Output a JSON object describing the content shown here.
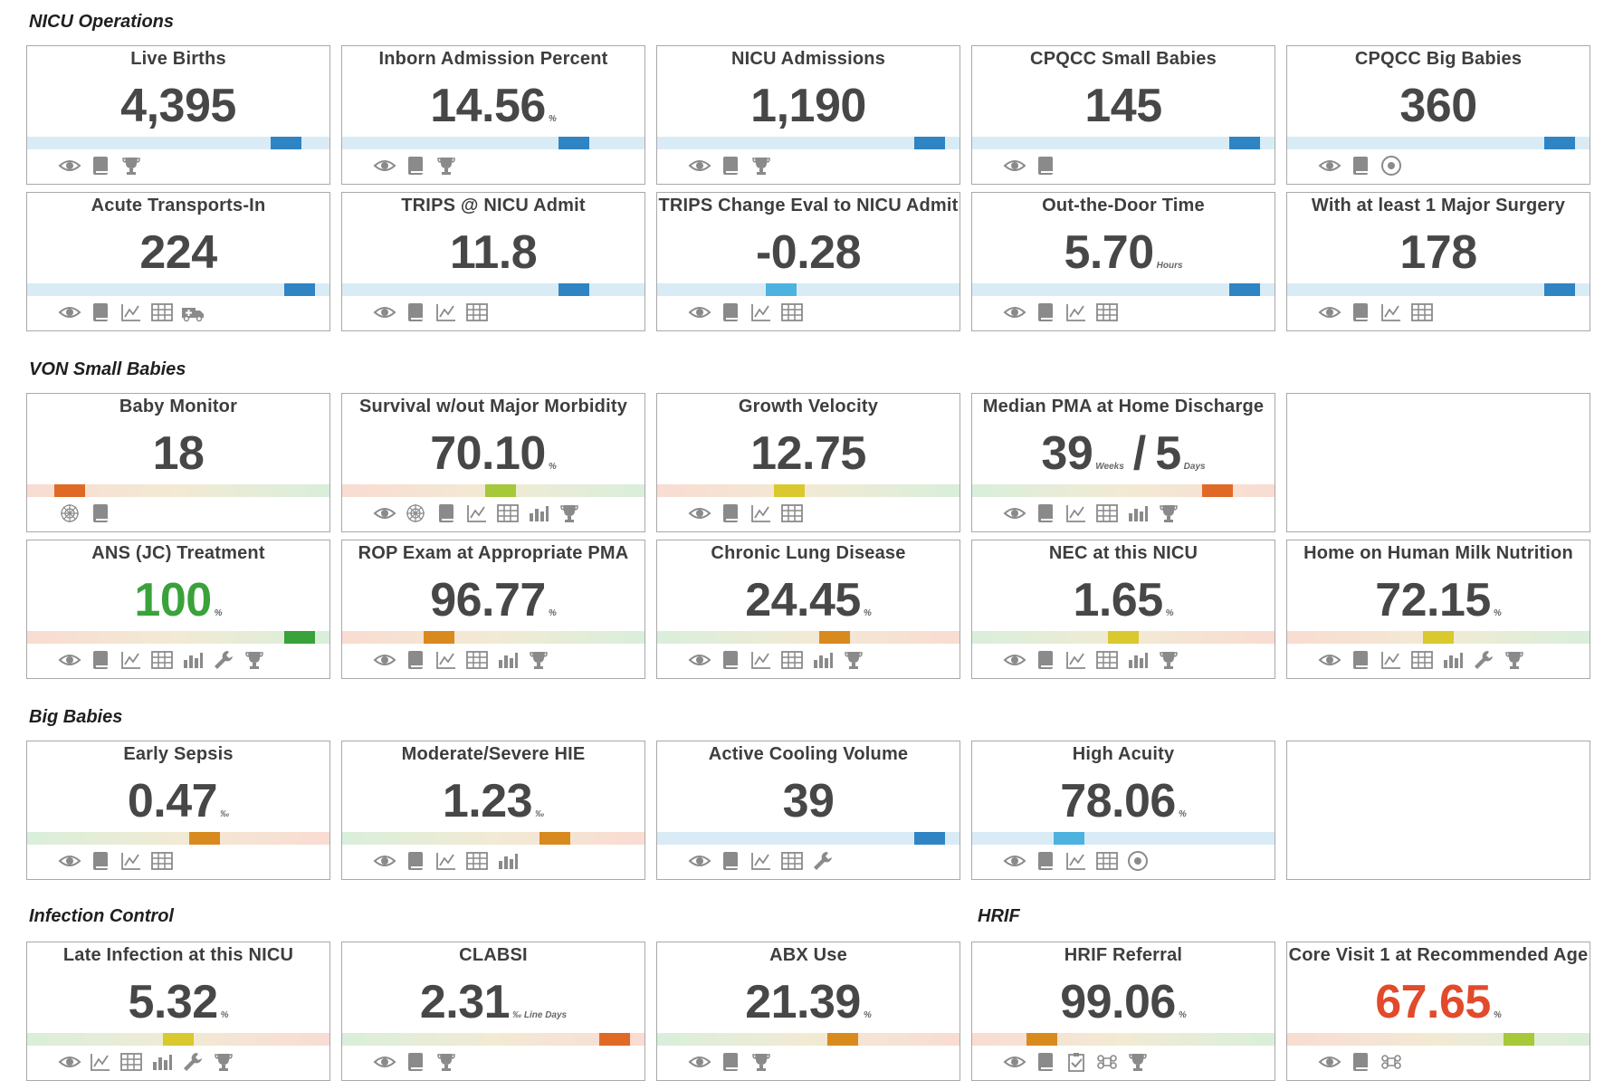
{
  "colors": {
    "blue": "#2f84c3",
    "lightblue": "#4db2e0",
    "orange": "#d98a1e",
    "dark_orange": "#e06a25",
    "yellow": "#d9c82e",
    "lime": "#a6c839",
    "green": "#3aa23a",
    "red": "#e24a2b",
    "value_default": "#474747"
  },
  "sections": {
    "nicu_ops": "NICU Operations",
    "von_small": "VON Small Babies",
    "big_babies": "Big Babies",
    "infection": "Infection Control",
    "hrif": "HRIF"
  },
  "cards": [
    {
      "title": "Live Births",
      "value": "4,395",
      "unit": "",
      "bar": "blue",
      "marker": 0.9,
      "color": "blue",
      "icons": [
        "eye",
        "book",
        "trophy"
      ]
    },
    {
      "title": "Inborn Admission Percent",
      "value": "14.56",
      "unit": "%",
      "bar": "blue",
      "marker": 0.8,
      "color": "blue",
      "icons": [
        "eye",
        "book",
        "trophy"
      ]
    },
    {
      "title": "NICU Admissions",
      "value": "1,190",
      "unit": "",
      "bar": "blue",
      "marker": 0.95,
      "color": "blue",
      "icons": [
        "eye",
        "book",
        "trophy"
      ]
    },
    {
      "title": "CPQCC Small Babies",
      "value": "145",
      "unit": "",
      "bar": "blue",
      "marker": 0.95,
      "color": "blue",
      "icons": [
        "eye",
        "book"
      ]
    },
    {
      "title": "CPQCC Big Babies",
      "value": "360",
      "unit": "",
      "bar": "blue",
      "marker": 0.95,
      "color": "blue",
      "icons": [
        "eye",
        "book",
        "target"
      ]
    },
    {
      "title": "Acute Transports-In",
      "value": "224",
      "unit": "",
      "bar": "blue",
      "marker": 0.95,
      "color": "blue",
      "icons": [
        "eye",
        "book",
        "line-chart",
        "table",
        "ambulance"
      ]
    },
    {
      "title": "TRIPS @ NICU Admit",
      "value": "11.8",
      "unit": "",
      "bar": "blue",
      "marker": 0.8,
      "color": "blue",
      "icons": [
        "eye",
        "book",
        "line-chart",
        "table"
      ]
    },
    {
      "title": "TRIPS Change Eval to NICU Admit",
      "value": "-0.28",
      "unit": "",
      "bar": "blue",
      "marker": 0.4,
      "color": "lightblue",
      "icons": [
        "eye",
        "book",
        "line-chart",
        "table"
      ]
    },
    {
      "title": "Out-the-Door Time",
      "value": "5.70",
      "unit": "Hours",
      "bar": "blue",
      "marker": 0.95,
      "color": "blue",
      "icons": [
        "eye",
        "book",
        "line-chart",
        "table"
      ]
    },
    {
      "title": "With at least 1 Major Surgery",
      "value": "178",
      "unit": "",
      "bar": "blue",
      "marker": 0.95,
      "color": "blue",
      "icons": [
        "eye",
        "book",
        "line-chart",
        "table"
      ]
    },
    {
      "title": "Baby Monitor",
      "value": "18",
      "unit": "",
      "bar": "grad",
      "marker": 0.1,
      "color": "dark_orange",
      "icons": [
        "web",
        "book"
      ]
    },
    {
      "title": "Survival w/out Major Morbidity",
      "value": "70.10",
      "unit": "%",
      "bar": "grad",
      "marker": 0.53,
      "color": "lime",
      "icons": [
        "eye",
        "web",
        "book",
        "line-chart",
        "table",
        "bar-chart",
        "trophy"
      ]
    },
    {
      "title": "Growth Velocity",
      "value": "12.75",
      "unit": "",
      "bar": "grad",
      "marker": 0.43,
      "color": "yellow",
      "icons": [
        "eye",
        "book",
        "line-chart",
        "table"
      ]
    },
    {
      "title": "Median PMA at Home Discharge",
      "value": "39",
      "unit": "Weeks",
      "sep": "/",
      "value2": "5",
      "unit2": "Days",
      "bar": "grad-rev",
      "marker": 0.85,
      "color": "dark_orange",
      "icons": [
        "eye",
        "book",
        "line-chart",
        "table",
        "bar-chart",
        "trophy"
      ]
    },
    null,
    {
      "title": "ANS (JC) Treatment",
      "value": "100",
      "unit": "%",
      "bar": "grad",
      "marker": 0.95,
      "color": "green",
      "value_color": "green",
      "icons": [
        "eye",
        "book",
        "line-chart",
        "table",
        "bar-chart",
        "wrench",
        "trophy"
      ]
    },
    {
      "title": "ROP Exam at Appropriate PMA",
      "value": "96.77",
      "unit": "%",
      "bar": "grad",
      "marker": 0.3,
      "color": "orange",
      "icons": [
        "eye",
        "book",
        "line-chart",
        "table",
        "bar-chart",
        "trophy"
      ]
    },
    {
      "title": "Chronic Lung Disease",
      "value": "24.45",
      "unit": "%",
      "bar": "grad-rev",
      "marker": 0.6,
      "color": "orange",
      "icons": [
        "eye",
        "book",
        "line-chart",
        "table",
        "bar-chart",
        "trophy"
      ]
    },
    {
      "title": "NEC at this NICU",
      "value": "1.65",
      "unit": "%",
      "bar": "grad-rev",
      "marker": 0.5,
      "color": "yellow",
      "icons": [
        "eye",
        "book",
        "line-chart",
        "table",
        "bar-chart",
        "trophy"
      ]
    },
    {
      "title": "Home on Human Milk Nutrition",
      "value": "72.15",
      "unit": "%",
      "bar": "grad",
      "marker": 0.5,
      "color": "yellow",
      "icons": [
        "eye",
        "book",
        "line-chart",
        "table",
        "bar-chart",
        "wrench",
        "trophy"
      ]
    },
    {
      "title": "Early Sepsis",
      "value": "0.47",
      "unit": "‰",
      "bar": "grad-rev",
      "marker": 0.6,
      "color": "orange",
      "icons": [
        "eye",
        "book",
        "line-chart",
        "table"
      ]
    },
    {
      "title": "Moderate/Severe HIE",
      "value": "1.23",
      "unit": "‰",
      "bar": "grad-rev",
      "marker": 0.73,
      "color": "orange",
      "icons": [
        "eye",
        "book",
        "line-chart",
        "table",
        "bar-chart"
      ]
    },
    {
      "title": "Active Cooling Volume",
      "value": "39",
      "unit": "",
      "bar": "blue",
      "marker": 0.95,
      "color": "blue",
      "icons": [
        "eye",
        "book",
        "line-chart",
        "table",
        "wrench"
      ]
    },
    {
      "title": "High Acuity",
      "value": "78.06",
      "unit": "%",
      "bar": "blue",
      "marker": 0.3,
      "color": "lightblue",
      "icons": [
        "eye",
        "book",
        "line-chart",
        "table",
        "target"
      ]
    },
    null,
    {
      "title": "Late Infection at this NICU",
      "value": "5.32",
      "unit": "%",
      "bar": "grad-rev",
      "marker": 0.5,
      "color": "yellow",
      "icons": [
        "eye",
        "line-chart",
        "table",
        "bar-chart",
        "wrench",
        "trophy"
      ]
    },
    {
      "title": "CLABSI",
      "value": "2.31",
      "unit": "‰ Line Days",
      "bar": "grad-rev",
      "marker": 0.95,
      "color": "dark_orange",
      "icons": [
        "eye",
        "book",
        "trophy"
      ]
    },
    {
      "title": "ABX Use",
      "value": "21.39",
      "unit": "%",
      "bar": "grad-rev",
      "marker": 0.63,
      "color": "orange",
      "icons": [
        "eye",
        "book",
        "trophy"
      ]
    },
    {
      "title": "HRIF Referral",
      "value": "99.06",
      "unit": "%",
      "bar": "grad",
      "marker": 0.2,
      "color": "orange",
      "icons": [
        "eye",
        "book",
        "checklist",
        "command",
        "trophy"
      ]
    },
    {
      "title": "Core Visit 1 at Recommended Age",
      "value": "67.65",
      "unit": "%",
      "bar": "grad",
      "marker": 0.8,
      "color": "lime",
      "value_color": "red",
      "icons": [
        "eye",
        "book",
        "command"
      ]
    }
  ]
}
